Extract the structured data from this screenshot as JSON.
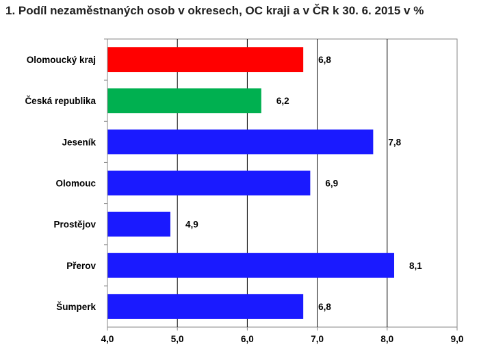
{
  "chart_data": {
    "type": "bar",
    "orientation": "horizontal",
    "title": "1.   Podíl nezaměstnaných osob v okresech, OC kraji a v ČR k 30. 6. 2015 v %",
    "categories": [
      "Olomoucký kraj",
      "Česká republika",
      "Jeseník",
      "Olomouc",
      "Prostějov",
      "Přerov",
      "Šumperk"
    ],
    "values": [
      6.8,
      6.2,
      7.8,
      6.9,
      4.9,
      8.1,
      6.8
    ],
    "value_labels": [
      "6,8",
      "6,2",
      "7,8",
      "6,9",
      "4,9",
      "8,1",
      "6,8"
    ],
    "bar_colors": [
      "#ff0000",
      "#00b050",
      "#1a1aff",
      "#1a1aff",
      "#1a1aff",
      "#1a1aff",
      "#1a1aff"
    ],
    "xlim": [
      4.0,
      9.0
    ],
    "x_ticks": [
      4.0,
      5.0,
      6.0,
      7.0,
      8.0,
      9.0
    ],
    "x_tick_labels": [
      "4,0",
      "5,0",
      "6,0",
      "7,0",
      "8,0",
      "9,0"
    ],
    "grid": "vertical",
    "xlabel": "",
    "ylabel": ""
  }
}
